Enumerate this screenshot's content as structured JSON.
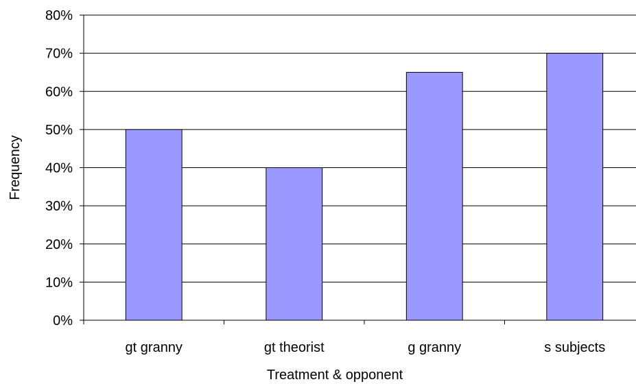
{
  "chart_data": {
    "type": "bar",
    "title": "",
    "xlabel": "Treatment & opponent",
    "ylabel": "Frequency",
    "categories": [
      "gt granny",
      "gt theorist",
      "g granny",
      "s subjects"
    ],
    "values": [
      50,
      40,
      65,
      70
    ],
    "value_unit": "%",
    "ylim": [
      0,
      80
    ],
    "yticks": [
      0,
      10,
      20,
      30,
      40,
      50,
      60,
      70,
      80
    ],
    "ytick_labels": [
      "0%",
      "10%",
      "20%",
      "30%",
      "40%",
      "50%",
      "60%",
      "70%",
      "80%"
    ],
    "grid": true,
    "legend": "none",
    "colors": {
      "bar_fill": "#9999ff",
      "bar_stroke": "#000000",
      "grid": "#000000"
    }
  }
}
